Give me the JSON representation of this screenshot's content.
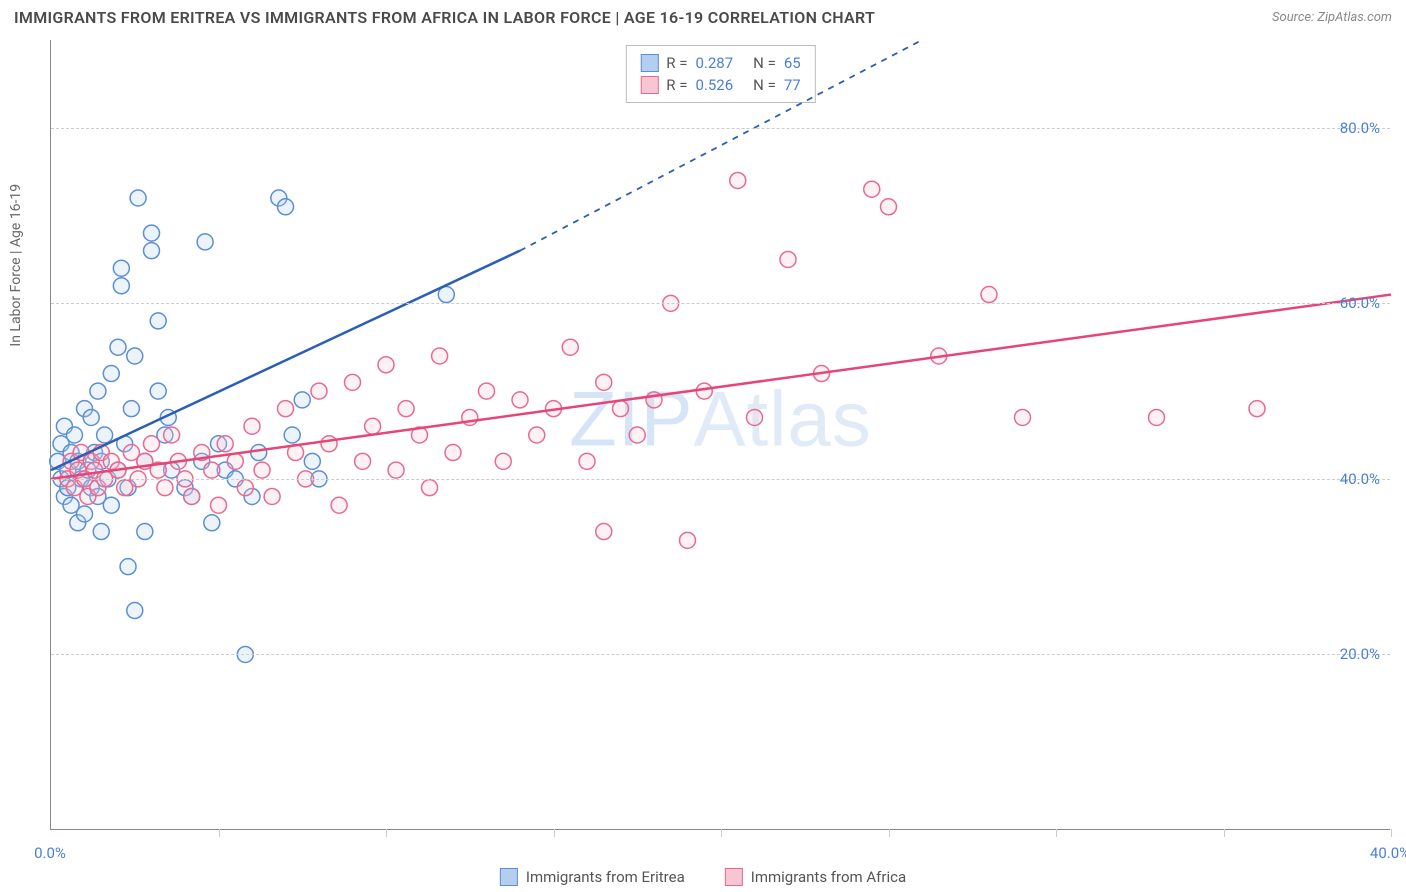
{
  "title": "IMMIGRANTS FROM ERITREA VS IMMIGRANTS FROM AFRICA IN LABOR FORCE | AGE 16-19 CORRELATION CHART",
  "source": "Source: ZipAtlas.com",
  "watermark_a": "ZIP",
  "watermark_b": "Atlas",
  "ylabel": "In Labor Force | Age 16-19",
  "chart": {
    "type": "scatter",
    "background_color": "#ffffff",
    "grid_color": "#cccccc",
    "axis_color": "#888888",
    "xlim": [
      0,
      40
    ],
    "ylim": [
      0,
      90
    ],
    "xticks": [
      0,
      5,
      10,
      15,
      20,
      25,
      30,
      35,
      40
    ],
    "xtick_labels": {
      "0": "0.0%",
      "40": "40.0%"
    },
    "yticks": [
      20,
      40,
      60,
      80
    ],
    "ytick_labels": {
      "20": "20.0%",
      "40": "40.0%",
      "60": "60.0%",
      "80": "80.0%"
    },
    "marker_radius": 8,
    "marker_stroke_width": 1.5,
    "marker_fill_opacity": 0.25,
    "line_width": 2.5,
    "label_fontsize": 15,
    "title_fontsize": 16,
    "title_color": "#4a4a4a",
    "tick_label_color": "#4a7fd8"
  },
  "series": [
    {
      "name": "Immigrants from Eritrea",
      "color_fill": "#b4cef0",
      "color_stroke": "#5a8fd6",
      "line_color": "#2c5fb3",
      "R": "0.287",
      "N": "65",
      "trend": {
        "x1": 0,
        "y1": 41,
        "x2_solid": 14,
        "y2_solid": 66,
        "x2_dash": 26,
        "y2_dash": 90
      },
      "points": [
        [
          0.2,
          42
        ],
        [
          0.3,
          40
        ],
        [
          0.3,
          44
        ],
        [
          0.4,
          38
        ],
        [
          0.4,
          46
        ],
        [
          0.5,
          41
        ],
        [
          0.5,
          39
        ],
        [
          0.6,
          43
        ],
        [
          0.6,
          37
        ],
        [
          0.7,
          45
        ],
        [
          0.8,
          42
        ],
        [
          0.8,
          35
        ],
        [
          0.9,
          40
        ],
        [
          1.0,
          48
        ],
        [
          1.0,
          36
        ],
        [
          1.1,
          41
        ],
        [
          1.2,
          39
        ],
        [
          1.2,
          47
        ],
        [
          1.3,
          43
        ],
        [
          1.4,
          38
        ],
        [
          1.4,
          50
        ],
        [
          1.5,
          42
        ],
        [
          1.6,
          45
        ],
        [
          1.7,
          40
        ],
        [
          1.8,
          52
        ],
        [
          1.8,
          37
        ],
        [
          2.0,
          41
        ],
        [
          2.0,
          55
        ],
        [
          2.1,
          62
        ],
        [
          2.1,
          64
        ],
        [
          2.2,
          44
        ],
        [
          2.3,
          39
        ],
        [
          2.4,
          48
        ],
        [
          2.5,
          54
        ],
        [
          2.6,
          72
        ],
        [
          2.8,
          34
        ],
        [
          2.8,
          42
        ],
        [
          3.0,
          68
        ],
        [
          3.0,
          66
        ],
        [
          3.2,
          50
        ],
        [
          3.4,
          45
        ],
        [
          3.5,
          47
        ],
        [
          3.6,
          41
        ],
        [
          4.0,
          39
        ],
        [
          4.2,
          38
        ],
        [
          4.5,
          42
        ],
        [
          4.6,
          67
        ],
        [
          4.8,
          35
        ],
        [
          5.0,
          44
        ],
        [
          5.2,
          41
        ],
        [
          5.5,
          40
        ],
        [
          5.8,
          20
        ],
        [
          6.0,
          38
        ],
        [
          6.2,
          43
        ],
        [
          6.8,
          72
        ],
        [
          7.0,
          71
        ],
        [
          7.2,
          45
        ],
        [
          7.5,
          49
        ],
        [
          7.8,
          42
        ],
        [
          8.0,
          40
        ],
        [
          2.3,
          30
        ],
        [
          2.5,
          25
        ],
        [
          1.5,
          34
        ],
        [
          11.8,
          61
        ],
        [
          3.2,
          58
        ]
      ]
    },
    {
      "name": "Immigrants from Africa",
      "color_fill": "#f7c6d2",
      "color_stroke": "#e86a93",
      "line_color": "#e64578",
      "R": "0.526",
      "N": "77",
      "trend": {
        "x1": 0,
        "y1": 40,
        "x2_solid": 40,
        "y2_solid": 61,
        "x2_dash": 40,
        "y2_dash": 61
      },
      "points": [
        [
          0.5,
          40
        ],
        [
          0.6,
          42
        ],
        [
          0.7,
          39
        ],
        [
          0.8,
          41
        ],
        [
          0.9,
          43
        ],
        [
          1.0,
          40
        ],
        [
          1.1,
          38
        ],
        [
          1.2,
          42
        ],
        [
          1.3,
          41
        ],
        [
          1.4,
          39
        ],
        [
          1.5,
          43
        ],
        [
          1.6,
          40
        ],
        [
          1.8,
          42
        ],
        [
          2.0,
          41
        ],
        [
          2.2,
          39
        ],
        [
          2.4,
          43
        ],
        [
          2.6,
          40
        ],
        [
          2.8,
          42
        ],
        [
          3.0,
          44
        ],
        [
          3.2,
          41
        ],
        [
          3.4,
          39
        ],
        [
          3.6,
          45
        ],
        [
          3.8,
          42
        ],
        [
          4.0,
          40
        ],
        [
          4.2,
          38
        ],
        [
          4.5,
          43
        ],
        [
          4.8,
          41
        ],
        [
          5.0,
          37
        ],
        [
          5.2,
          44
        ],
        [
          5.5,
          42
        ],
        [
          5.8,
          39
        ],
        [
          6.0,
          46
        ],
        [
          6.3,
          41
        ],
        [
          6.6,
          38
        ],
        [
          7.0,
          48
        ],
        [
          7.3,
          43
        ],
        [
          7.6,
          40
        ],
        [
          8.0,
          50
        ],
        [
          8.3,
          44
        ],
        [
          8.6,
          37
        ],
        [
          9.0,
          51
        ],
        [
          9.3,
          42
        ],
        [
          9.6,
          46
        ],
        [
          10.0,
          53
        ],
        [
          10.3,
          41
        ],
        [
          10.6,
          48
        ],
        [
          11.0,
          45
        ],
        [
          11.3,
          39
        ],
        [
          11.6,
          54
        ],
        [
          12.0,
          43
        ],
        [
          12.5,
          47
        ],
        [
          13.0,
          50
        ],
        [
          13.5,
          42
        ],
        [
          14.0,
          49
        ],
        [
          14.5,
          45
        ],
        [
          15.0,
          48
        ],
        [
          15.5,
          55
        ],
        [
          16.0,
          42
        ],
        [
          16.5,
          51
        ],
        [
          17.0,
          48
        ],
        [
          17.5,
          45
        ],
        [
          18.0,
          49
        ],
        [
          18.5,
          60
        ],
        [
          19.0,
          33
        ],
        [
          19.5,
          50
        ],
        [
          20.5,
          74
        ],
        [
          21.0,
          47
        ],
        [
          22.0,
          65
        ],
        [
          23.0,
          52
        ],
        [
          24.5,
          73
        ],
        [
          25.0,
          71
        ],
        [
          26.5,
          54
        ],
        [
          28.0,
          61
        ],
        [
          29.0,
          47
        ],
        [
          33.0,
          47
        ],
        [
          36.0,
          48
        ],
        [
          16.5,
          34
        ]
      ]
    }
  ],
  "legend_bottom": [
    {
      "label": "Immigrants from Eritrea",
      "swatch": "blue"
    },
    {
      "label": "Immigrants from Africa",
      "swatch": "pink"
    }
  ]
}
